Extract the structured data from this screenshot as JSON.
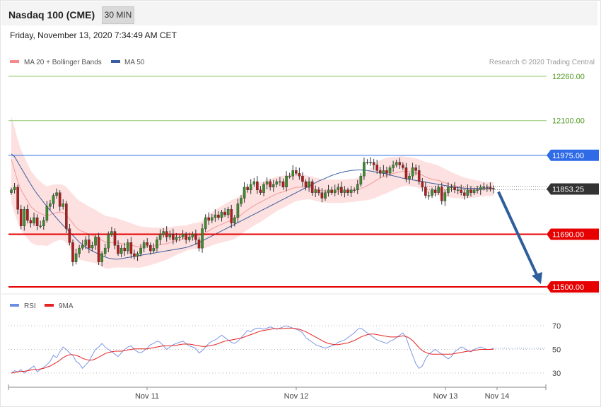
{
  "header": {
    "instrument": "Nasdaq 100 (CME)",
    "timeframe": "30 MIN"
  },
  "datetime": "Friday, November 13, 2020 7:34:49 AM CET",
  "legend": [
    {
      "label": "MA 20 + Bollinger Bands",
      "color": "#f48a8a"
    },
    {
      "label": "MA 50",
      "color": "#3b5f9e"
    }
  ],
  "rsi_legend": [
    {
      "label": "RSI",
      "color": "#6a8fe0"
    },
    {
      "label": "9MA",
      "color": "#e52222"
    }
  ],
  "credit": "Research © 2020 Trading Central",
  "colors": {
    "up": "#3c8c2c",
    "down": "#b41c1c",
    "resistance_green": "#8fc96a",
    "pivot_blue": "#2f6be6",
    "support_red": "#e60000",
    "band_fill": "#fde0e0",
    "arrow": "#2e5e9c",
    "price_tag": "#333333"
  },
  "chart_data": [
    {
      "type": "candlestick",
      "title": "",
      "xlabel": "",
      "ylabel": "",
      "ylim": [
        11490,
        12280
      ],
      "x_ticks": [
        "Nov 11",
        "Nov 12",
        "Nov 13",
        "Nov 14"
      ],
      "levels": [
        {
          "value": 12260,
          "label": "12260.00",
          "kind": "resistance"
        },
        {
          "value": 12100,
          "label": "12100.00",
          "kind": "resistance"
        },
        {
          "value": 11975,
          "label": "11975.00",
          "kind": "pivot"
        },
        {
          "value": 11690,
          "label": "11690.00",
          "kind": "support"
        },
        {
          "value": 11500,
          "label": "11500.00",
          "kind": "support"
        }
      ],
      "last_price": {
        "value": 11853.25,
        "label": "11853.25"
      },
      "forecast_arrow": {
        "from": 11853.25,
        "to": 11500
      },
      "closes": [
        11850,
        11860,
        11780,
        11720,
        11780,
        11740,
        11730,
        11750,
        11720,
        11720,
        11740,
        11790,
        11800,
        11830,
        11840,
        11790,
        11800,
        11710,
        11660,
        11590,
        11620,
        11640,
        11650,
        11670,
        11640,
        11650,
        11680,
        11590,
        11620,
        11640,
        11690,
        11700,
        11650,
        11620,
        11640,
        11630,
        11660,
        11620,
        11610,
        11620,
        11640,
        11660,
        11650,
        11630,
        11640,
        11670,
        11690,
        11700,
        11680,
        11690,
        11670,
        11680,
        11680,
        11690,
        11670,
        11680,
        11690,
        11670,
        11640,
        11710,
        11750,
        11740,
        11750,
        11760,
        11750,
        11770,
        11760,
        11780,
        11730,
        11750,
        11800,
        11820,
        11860,
        11850,
        11870,
        11880,
        11850,
        11840,
        11870,
        11880,
        11860,
        11870,
        11880,
        11880,
        11860,
        11900,
        11900,
        11920,
        11910,
        11900,
        11880,
        11860,
        11880,
        11840,
        11850,
        11840,
        11820,
        11840,
        11850,
        11840,
        11850,
        11860,
        11840,
        11850,
        11840,
        11850,
        11850,
        11870,
        11900,
        11950,
        11950,
        11950,
        11940,
        11920,
        11910,
        11920,
        11910,
        11930,
        11940,
        11950,
        11940,
        11930,
        11890,
        11900,
        11930,
        11920,
        11880,
        11860,
        11830,
        11830,
        11850,
        11840,
        11860,
        11810,
        11840,
        11860,
        11860,
        11850,
        11850,
        11840,
        11830,
        11850,
        11840,
        11850,
        11850,
        11860,
        11860,
        11860,
        11855,
        11853.25
      ],
      "ma20": [
        11960,
        11920,
        11880,
        11850,
        11830,
        11810,
        11790,
        11780,
        11770,
        11765,
        11760,
        11755,
        11760,
        11765,
        11768,
        11770,
        11768,
        11760,
        11745,
        11730,
        11715,
        11705,
        11700,
        11695,
        11690,
        11686,
        11682,
        11675,
        11668,
        11662,
        11660,
        11660,
        11660,
        11658,
        11656,
        11654,
        11652,
        11650,
        11648,
        11645,
        11644,
        11645,
        11646,
        11647,
        11648,
        11650,
        11652,
        11654,
        11656,
        11660,
        11664,
        11667,
        11670,
        11673,
        11676,
        11680,
        11683,
        11684,
        11685,
        11688,
        11695,
        11702,
        11710,
        11716,
        11721,
        11726,
        11731,
        11736,
        11741,
        11746,
        11752,
        11760,
        11770,
        11778,
        11786,
        11793,
        11800,
        11806,
        11812,
        11818,
        11824,
        11830,
        11836,
        11840,
        11843,
        11848,
        11852,
        11856,
        11859,
        11860,
        11860,
        11859,
        11858,
        11856,
        11852,
        11850,
        11847,
        11846,
        11845,
        11845,
        11845,
        11845,
        11845,
        11846,
        11847,
        11848,
        11849,
        11851,
        11855,
        11860,
        11865,
        11872,
        11879,
        11886,
        11893,
        11898,
        11902,
        11906,
        11909,
        11912,
        11915,
        11917,
        11917,
        11916,
        11914,
        11912,
        11908,
        11903,
        11897,
        11892,
        11889,
        11886,
        11884,
        11880,
        11876,
        11872,
        11868,
        11865,
        11862,
        11859,
        11857,
        11856,
        11855,
        11854,
        11854,
        11854,
        11853,
        11853,
        11853,
        11853
      ],
      "bb_width": [
        155,
        155,
        150,
        145,
        140,
        135,
        130,
        125,
        120,
        115,
        110,
        108,
        106,
        104,
        102,
        100,
        100,
        100,
        102,
        104,
        106,
        106,
        104,
        102,
        100,
        98,
        96,
        96,
        96,
        95,
        94,
        92,
        90,
        88,
        86,
        84,
        82,
        80,
        78,
        76,
        74,
        72,
        70,
        68,
        66,
        64,
        62,
        60,
        58,
        56,
        54,
        52,
        50,
        48,
        46,
        46,
        46,
        46,
        48,
        50,
        54,
        58,
        60,
        62,
        64,
        66,
        68,
        70,
        72,
        72,
        72,
        72,
        72,
        72,
        72,
        72,
        72,
        72,
        70,
        68,
        66,
        64,
        62,
        60,
        58,
        56,
        54,
        52,
        50,
        48,
        46,
        44,
        42,
        42,
        42,
        42,
        42,
        42,
        42,
        42,
        42,
        42,
        42,
        42,
        42,
        42,
        42,
        42,
        44,
        48,
        52,
        56,
        60,
        62,
        64,
        64,
        64,
        62,
        60,
        58,
        56,
        54,
        52,
        52,
        52,
        52,
        52,
        52,
        54,
        56,
        56,
        56,
        54,
        52,
        50,
        48,
        46,
        44,
        42,
        40,
        38,
        36,
        34,
        32,
        30,
        28,
        26,
        25,
        25,
        25
      ],
      "ma50": [
        11980,
        11970,
        11950,
        11930,
        11910,
        11890,
        11870,
        11852,
        11835,
        11820,
        11805,
        11790,
        11776,
        11762,
        11748,
        11735,
        11722,
        11710,
        11698,
        11686,
        11674,
        11662,
        11652,
        11643,
        11636,
        11630,
        11624,
        11618,
        11613,
        11608,
        11604,
        11602,
        11600,
        11600,
        11602,
        11604,
        11606,
        11608,
        11610,
        11612,
        11614,
        11616,
        11618,
        11620,
        11622,
        11624,
        11626,
        11628,
        11630,
        11632,
        11634,
        11636,
        11638,
        11640,
        11642,
        11646,
        11650,
        11655,
        11660,
        11666,
        11672,
        11678,
        11684,
        11690,
        11696,
        11702,
        11708,
        11714,
        11720,
        11726,
        11732,
        11738,
        11744,
        11750,
        11756,
        11762,
        11768,
        11774,
        11780,
        11786,
        11792,
        11798,
        11804,
        11810,
        11816,
        11822,
        11828,
        11834,
        11840,
        11846,
        11852,
        11858,
        11864,
        11870,
        11876,
        11882,
        11887,
        11892,
        11897,
        11902,
        11906,
        11910,
        11913,
        11916,
        11918,
        11920,
        11921,
        11922,
        11922,
        11921,
        11920,
        11918,
        11916,
        11914,
        11912,
        11910,
        11907,
        11904,
        11901,
        11898,
        11895,
        11892,
        11890,
        11888,
        11886,
        11884,
        11882,
        11880,
        11878,
        11876,
        11874,
        11872,
        11870,
        11868,
        11866,
        11864,
        11862,
        11860,
        11858,
        11857,
        11856,
        11855,
        11855,
        11855,
        11855,
        11855,
        11855,
        11855,
        11855,
        11855
      ]
    },
    {
      "type": "line",
      "title": "",
      "ylim": [
        20,
        80
      ],
      "y_ticks": [
        30,
        50,
        70
      ],
      "series": [
        {
          "name": "RSI",
          "values": [
            30,
            32,
            31,
            33,
            30,
            32,
            34,
            36,
            31,
            33,
            35,
            37,
            40,
            45,
            43,
            48,
            52,
            50,
            47,
            45,
            40,
            38,
            34,
            37,
            40,
            45,
            50,
            52,
            55,
            52,
            50,
            48,
            46,
            44,
            47,
            50,
            52,
            53,
            50,
            48,
            47,
            49,
            51,
            54,
            55,
            57,
            56,
            53,
            50,
            52,
            54,
            55,
            56,
            57,
            55,
            53,
            52,
            51,
            47,
            49,
            52,
            55,
            57,
            58,
            60,
            62,
            60,
            58,
            56,
            55,
            57,
            60,
            63,
            66,
            65,
            67,
            68,
            68,
            67,
            68,
            69,
            68,
            67,
            68,
            69,
            70,
            69,
            68,
            67,
            66,
            64,
            60,
            58,
            56,
            54,
            53,
            52,
            51,
            52,
            53,
            54,
            56,
            57,
            58,
            60,
            62,
            64,
            67,
            68,
            66,
            64,
            62,
            60,
            58,
            57,
            56,
            55,
            57,
            58,
            60,
            62,
            64,
            60,
            52,
            45,
            38,
            34,
            36,
            42,
            46,
            48,
            50,
            48,
            46,
            44,
            42,
            44,
            48,
            50,
            52,
            51,
            49,
            48,
            50,
            51,
            52,
            51,
            50,
            50,
            51
          ]
        },
        {
          "name": "9MA",
          "values": [
            30,
            30.5,
            31,
            31.5,
            31.5,
            32,
            32.5,
            33,
            33,
            33.5,
            34,
            35,
            36,
            37.5,
            39,
            41,
            43,
            44.5,
            45.5,
            45.5,
            45,
            44,
            42.5,
            41.5,
            41,
            41,
            42,
            43.5,
            45,
            46.5,
            47.5,
            48,
            48.5,
            48.5,
            48.5,
            49,
            49.5,
            50,
            50.5,
            50.5,
            50.5,
            50.5,
            50.5,
            51,
            51.5,
            52,
            52.5,
            53,
            53,
            53,
            53,
            53.5,
            54,
            54.5,
            54.5,
            54.5,
            54,
            53.5,
            53,
            52.5,
            52.5,
            53,
            53.5,
            54,
            55,
            56,
            57,
            57.5,
            58,
            58.5,
            59,
            59.5,
            60.5,
            61.5,
            62.5,
            63.5,
            64.5,
            65.5,
            66,
            66.5,
            67,
            67.5,
            67.5,
            67.5,
            67.5,
            68,
            68,
            68,
            67.5,
            67,
            66,
            65,
            63.5,
            62,
            60.5,
            59,
            57.5,
            56,
            55,
            54.5,
            54,
            54,
            54.5,
            55,
            55.5,
            56.5,
            57.5,
            59,
            60.5,
            61.5,
            62.5,
            63,
            63,
            62.5,
            62,
            61.5,
            61,
            60.5,
            60.5,
            60.5,
            61,
            61.5,
            61,
            59.5,
            57.5,
            54.5,
            51.5,
            49,
            47.5,
            46.5,
            46,
            46,
            46,
            46,
            46,
            46,
            46,
            46.5,
            47,
            47.5,
            48,
            48.5,
            48.5,
            49,
            49.5,
            50,
            50,
            50,
            50,
            50.2
          ]
        }
      ]
    }
  ]
}
